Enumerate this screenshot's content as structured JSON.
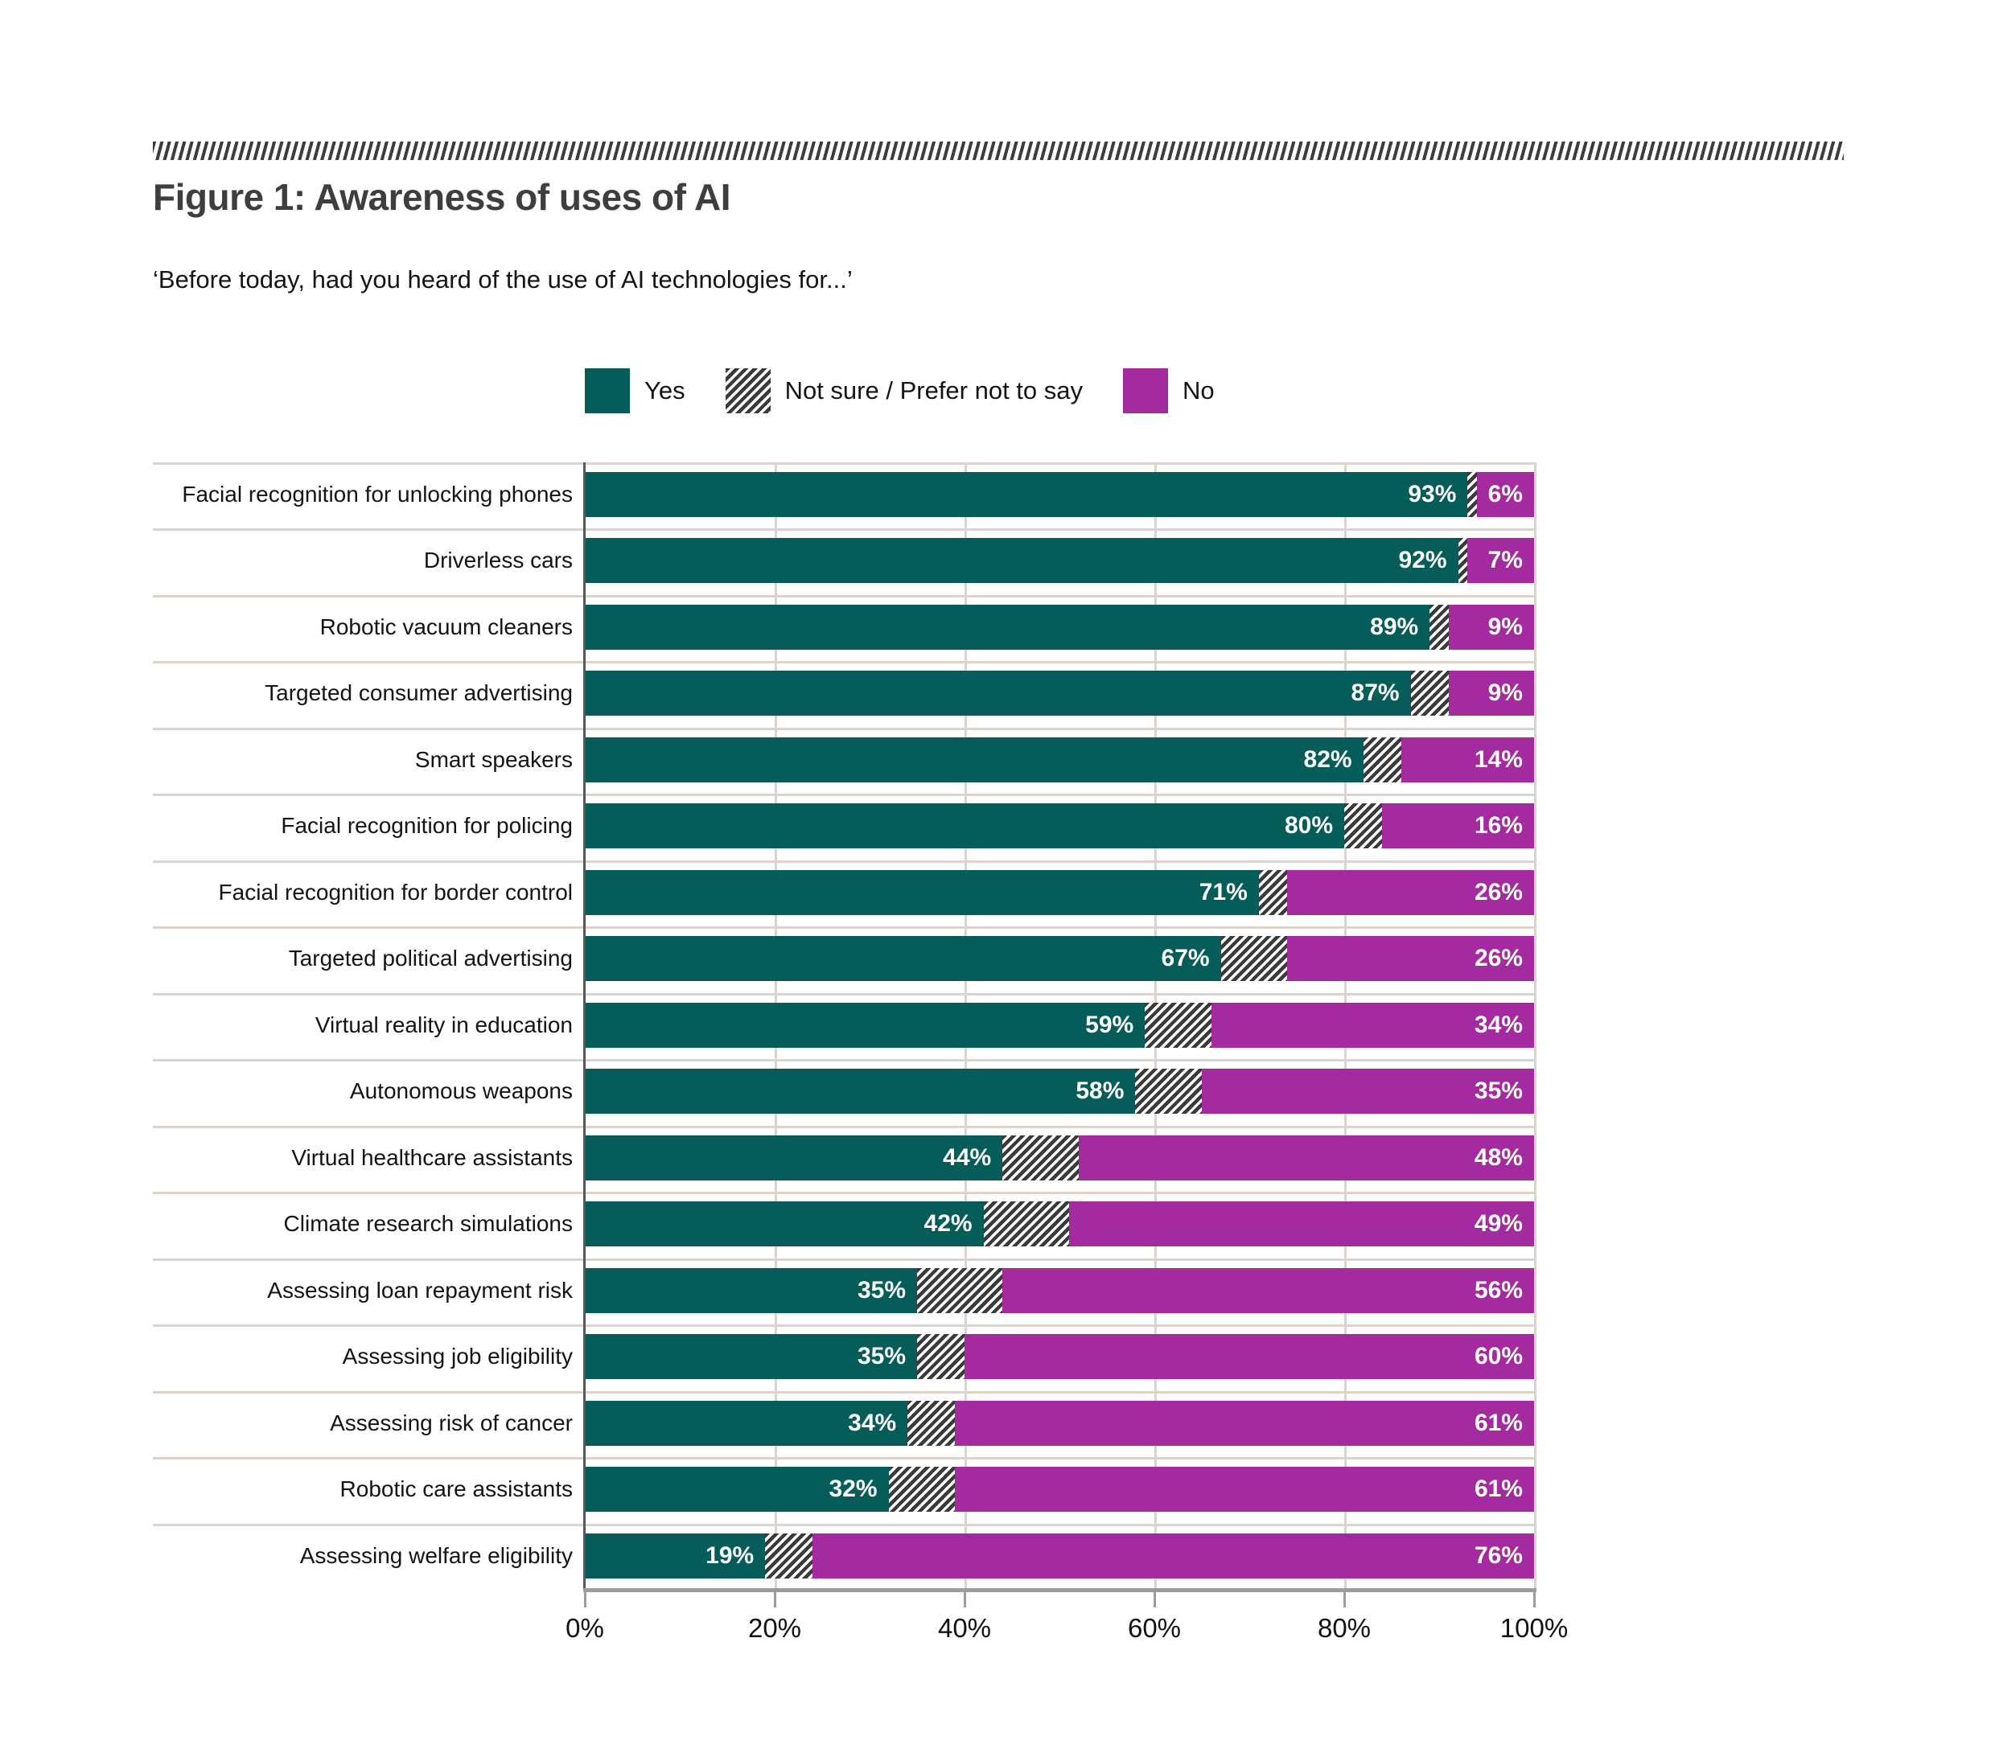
{
  "page": {
    "figure_title": "Figure 1: Awareness of uses of AI",
    "question": "‘Before today, had you heard of the use of AI technologies for...’"
  },
  "colors": {
    "yes": "#055c59",
    "no": "#a42a9f",
    "hatch_dark": "#3a3a3a",
    "separator": "#dcd4cb",
    "axis_gray": "#9c9c9c",
    "zero_line": "#55595c",
    "title_gray": "#3e3e3e"
  },
  "legend": [
    {
      "key": "yes",
      "label": "Yes"
    },
    {
      "key": "notsure",
      "label": "Not sure / Prefer not to say"
    },
    {
      "key": "no",
      "label": "No"
    }
  ],
  "chart_data": {
    "type": "bar",
    "orientation": "horizontal",
    "stacked": true,
    "title": "Figure 1: Awareness of uses of AI",
    "subtitle": "‘Before today, had you heard of the use of AI technologies for...’",
    "categories": [
      "Facial recognition for unlocking phones",
      "Driverless cars",
      "Robotic vacuum cleaners",
      "Targeted consumer advertising",
      "Smart speakers",
      "Facial recognition for policing",
      "Facial recognition for border control",
      "Targeted political advertising",
      "Virtual reality in education",
      "Autonomous weapons",
      "Virtual healthcare assistants",
      "Climate research simulations",
      "Assessing loan repayment risk",
      "Assessing job eligibility",
      "Assessing risk of cancer",
      "Robotic care assistants",
      "Assessing welfare eligibility"
    ],
    "series": [
      {
        "name": "Yes",
        "values": [
          93,
          92,
          89,
          87,
          82,
          80,
          71,
          67,
          59,
          58,
          44,
          42,
          35,
          35,
          34,
          32,
          19
        ]
      },
      {
        "name": "Not sure / Prefer not to say",
        "values": [
          1,
          1,
          2,
          4,
          4,
          4,
          3,
          7,
          7,
          7,
          8,
          9,
          9,
          5,
          5,
          7,
          5
        ]
      },
      {
        "name": "No",
        "values": [
          6,
          7,
          9,
          9,
          14,
          16,
          26,
          26,
          34,
          35,
          48,
          49,
          56,
          60,
          61,
          61,
          76
        ]
      }
    ],
    "value_label_format": "{value}%",
    "value_labels_shown_for": [
      "Yes",
      "No"
    ],
    "x_ticks": [
      "0%",
      "20%",
      "40%",
      "60%",
      "80%",
      "100%"
    ],
    "xlim": [
      0,
      100
    ],
    "grid": "vertical",
    "legend_position": "top"
  }
}
